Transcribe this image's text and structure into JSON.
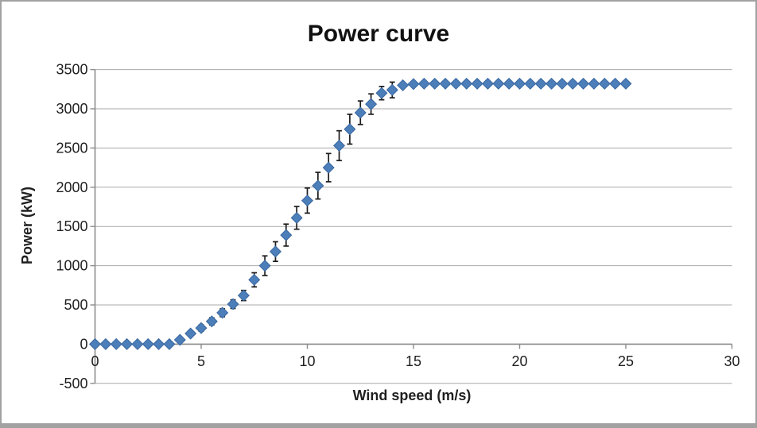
{
  "chart_data": {
    "type": "scatter",
    "title": "Power curve",
    "xlabel": "Wind speed (m/s)",
    "ylabel": "Power (kW)",
    "xlim": [
      0,
      30
    ],
    "ylim": [
      -500,
      3500
    ],
    "grid": "horizontal-major",
    "legend": "none",
    "x_ticks": [
      0,
      5,
      10,
      15,
      20,
      25,
      30
    ],
    "y_ticks": [
      -500,
      0,
      500,
      1000,
      1500,
      2000,
      2500,
      3000,
      3500
    ],
    "series": [
      {
        "name": "Power",
        "marker": "diamond",
        "x": [
          0,
          0.5,
          1,
          1.5,
          2,
          2.5,
          3,
          3.5,
          4,
          4.5,
          5,
          5.5,
          6,
          6.5,
          7,
          7.5,
          8,
          8.5,
          9,
          9.5,
          10,
          10.5,
          11,
          11.5,
          12,
          12.5,
          13,
          13.5,
          14,
          14.5,
          15,
          15.5,
          16,
          16.5,
          17,
          17.5,
          18,
          18.5,
          19,
          19.5,
          20,
          20.5,
          21,
          21.5,
          22,
          22.5,
          23,
          23.5,
          24,
          24.5,
          25
        ],
        "y": [
          0,
          0,
          0,
          0,
          0,
          0,
          0,
          0,
          55,
          135,
          205,
          290,
          400,
          510,
          620,
          820,
          1000,
          1180,
          1390,
          1610,
          1830,
          2020,
          2250,
          2530,
          2740,
          2950,
          3060,
          3200,
          3240,
          3300,
          3315,
          3320,
          3320,
          3320,
          3320,
          3320,
          3320,
          3320,
          3320,
          3320,
          3320,
          3320,
          3320,
          3320,
          3320,
          3320,
          3320,
          3320,
          3320,
          3320,
          3320
        ],
        "yerr": [
          0,
          0,
          0,
          0,
          0,
          0,
          0,
          0,
          0,
          35,
          40,
          45,
          50,
          55,
          65,
          90,
          125,
          125,
          140,
          145,
          160,
          170,
          180,
          190,
          190,
          150,
          130,
          85,
          100,
          0,
          0,
          0,
          0,
          0,
          0,
          0,
          0,
          0,
          0,
          0,
          0,
          0,
          0,
          0,
          0,
          0,
          0,
          0,
          0,
          0,
          0
        ]
      }
    ]
  },
  "colors": {
    "marker_fill": "#4c7fba",
    "marker_border": "#39669f",
    "error_bar": "#1c1c1c",
    "gridline": "#a9a9a9",
    "axis": "#8c8c8c",
    "tick_text": "#1f1f1f",
    "title_text": "#111111",
    "frame_border": "#a2a2a2",
    "background": "#ffffff"
  }
}
